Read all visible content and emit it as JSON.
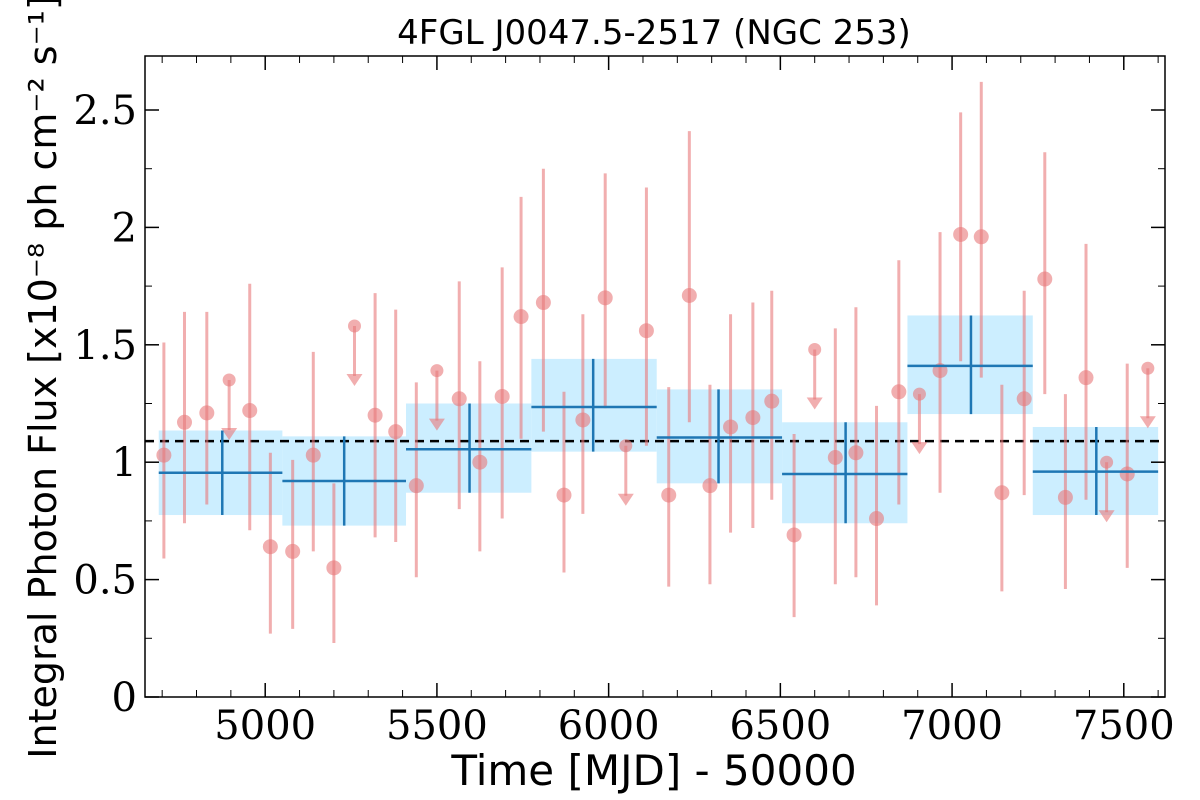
{
  "chart_data": {
    "type": "scatter",
    "title": "4FGL J0047.5-2517 (NGC 253)",
    "xlabel": "Time [MJD] - 50000",
    "ylabel": "Integral Photon Flux [x10⁻⁸ ph cm⁻² s⁻¹]",
    "xlim": [
      4650,
      7620
    ],
    "ylim": [
      0,
      2.73
    ],
    "x_ticks": [
      5000,
      5500,
      6000,
      6500,
      7000,
      7500
    ],
    "x_tick_labels": [
      "5000",
      "5500",
      "6000",
      "6500",
      "7000",
      "7500"
    ],
    "y_ticks": [
      0,
      0.5,
      1,
      1.5,
      2,
      2.5
    ],
    "y_tick_labels": [
      "0",
      "0.5",
      "1",
      "1.5",
      "2",
      "2.5"
    ],
    "mean_flux": 1.09,
    "colors": {
      "short_bins": "#e8787a",
      "long_bins": "#1f77b4",
      "long_bin_band": "#cceeff",
      "mean_line": "#000000"
    },
    "long_bins": [
      {
        "x": 4875,
        "x_lo": 4690,
        "x_hi": 5050,
        "y": 0.955,
        "y_lo": 0.775,
        "y_hi": 1.135
      },
      {
        "x": 5230,
        "x_lo": 5050,
        "x_hi": 5410,
        "y": 0.92,
        "y_lo": 0.73,
        "y_hi": 1.11
      },
      {
        "x": 5595,
        "x_lo": 5410,
        "x_hi": 5775,
        "y": 1.055,
        "y_lo": 0.87,
        "y_hi": 1.25
      },
      {
        "x": 5955,
        "x_lo": 5775,
        "x_hi": 6140,
        "y": 1.235,
        "y_lo": 1.045,
        "y_hi": 1.44
      },
      {
        "x": 6320,
        "x_lo": 6140,
        "x_hi": 6505,
        "y": 1.105,
        "y_lo": 0.91,
        "y_hi": 1.31
      },
      {
        "x": 6690,
        "x_lo": 6505,
        "x_hi": 6870,
        "y": 0.95,
        "y_lo": 0.74,
        "y_hi": 1.17
      },
      {
        "x": 7055,
        "x_lo": 6870,
        "x_hi": 7235,
        "y": 1.41,
        "y_lo": 1.205,
        "y_hi": 1.625
      },
      {
        "x": 7420,
        "x_lo": 7235,
        "x_hi": 7600,
        "y": 0.96,
        "y_lo": 0.775,
        "y_hi": 1.15
      }
    ],
    "short_bins": [
      {
        "x": 4705,
        "y": 1.03,
        "y_lo": 0.59,
        "y_hi": 1.51
      },
      {
        "x": 4765,
        "y": 1.17,
        "y_lo": 0.74,
        "y_hi": 1.64
      },
      {
        "x": 4830,
        "y": 1.21,
        "y_lo": 0.82,
        "y_hi": 1.64
      },
      {
        "x": 4955,
        "y": 1.22,
        "y_lo": 0.71,
        "y_hi": 1.76
      },
      {
        "x": 5015,
        "y": 0.64,
        "y_lo": 0.27,
        "y_hi": 1.04
      },
      {
        "x": 5080,
        "y": 0.62,
        "y_lo": 0.29,
        "y_hi": 1.01
      },
      {
        "x": 5140,
        "y": 1.03,
        "y_lo": 0.62,
        "y_hi": 1.47
      },
      {
        "x": 5200,
        "y": 0.55,
        "y_lo": 0.23,
        "y_hi": 0.91
      },
      {
        "x": 5320,
        "y": 1.2,
        "y_lo": 0.68,
        "y_hi": 1.72
      },
      {
        "x": 5380,
        "y": 1.13,
        "y_lo": 0.66,
        "y_hi": 1.65
      },
      {
        "x": 5440,
        "y": 0.9,
        "y_lo": 0.51,
        "y_hi": 1.34
      },
      {
        "x": 5565,
        "y": 1.27,
        "y_lo": 0.8,
        "y_hi": 1.77
      },
      {
        "x": 5625,
        "y": 1.0,
        "y_lo": 0.62,
        "y_hi": 1.43
      },
      {
        "x": 5690,
        "y": 1.28,
        "y_lo": 0.76,
        "y_hi": 1.83
      },
      {
        "x": 5745,
        "y": 1.62,
        "y_lo": 1.1,
        "y_hi": 2.13
      },
      {
        "x": 5810,
        "y": 1.68,
        "y_lo": 1.13,
        "y_hi": 2.25
      },
      {
        "x": 5870,
        "y": 0.86,
        "y_lo": 0.53,
        "y_hi": 1.3
      },
      {
        "x": 5925,
        "y": 1.18,
        "y_lo": 0.78,
        "y_hi": 1.63
      },
      {
        "x": 5990,
        "y": 1.7,
        "y_lo": 1.23,
        "y_hi": 2.23
      },
      {
        "x": 6110,
        "y": 1.56,
        "y_lo": 1.07,
        "y_hi": 2.17
      },
      {
        "x": 6175,
        "y": 0.86,
        "y_lo": 0.47,
        "y_hi": 1.32
      },
      {
        "x": 6235,
        "y": 1.71,
        "y_lo": 1.17,
        "y_hi": 2.41
      },
      {
        "x": 6295,
        "y": 0.9,
        "y_lo": 0.48,
        "y_hi": 1.33
      },
      {
        "x": 6355,
        "y": 1.15,
        "y_lo": 0.7,
        "y_hi": 1.63
      },
      {
        "x": 6420,
        "y": 1.19,
        "y_lo": 0.72,
        "y_hi": 1.68
      },
      {
        "x": 6475,
        "y": 1.26,
        "y_lo": 0.84,
        "y_hi": 1.73
      },
      {
        "x": 6540,
        "y": 0.69,
        "y_lo": 0.34,
        "y_hi": 1.12
      },
      {
        "x": 6660,
        "y": 1.02,
        "y_lo": 0.48,
        "y_hi": 1.57
      },
      {
        "x": 6720,
        "y": 1.04,
        "y_lo": 0.51,
        "y_hi": 1.66
      },
      {
        "x": 6780,
        "y": 0.76,
        "y_lo": 0.39,
        "y_hi": 1.24
      },
      {
        "x": 6845,
        "y": 1.3,
        "y_lo": 0.82,
        "y_hi": 1.86
      },
      {
        "x": 6965,
        "y": 1.39,
        "y_lo": 0.87,
        "y_hi": 1.98
      },
      {
        "x": 7025,
        "y": 1.97,
        "y_lo": 1.43,
        "y_hi": 2.49
      },
      {
        "x": 7085,
        "y": 1.96,
        "y_lo": 1.36,
        "y_hi": 2.62
      },
      {
        "x": 7145,
        "y": 0.87,
        "y_lo": 0.45,
        "y_hi": 1.33
      },
      {
        "x": 7210,
        "y": 1.27,
        "y_lo": 0.86,
        "y_hi": 1.73
      },
      {
        "x": 7270,
        "y": 1.78,
        "y_lo": 1.29,
        "y_hi": 2.32
      },
      {
        "x": 7330,
        "y": 0.85,
        "y_lo": 0.46,
        "y_hi": 1.29
      },
      {
        "x": 7390,
        "y": 1.36,
        "y_lo": 0.84,
        "y_hi": 1.93
      },
      {
        "x": 7510,
        "y": 0.95,
        "y_lo": 0.55,
        "y_hi": 1.42
      }
    ],
    "upper_limits": [
      {
        "x": 4895,
        "y": 1.35
      },
      {
        "x": 5260,
        "y": 1.58
      },
      {
        "x": 5500,
        "y": 1.39
      },
      {
        "x": 6050,
        "y": 1.07
      },
      {
        "x": 6600,
        "y": 1.48
      },
      {
        "x": 6905,
        "y": 1.29
      },
      {
        "x": 7450,
        "y": 1.0
      },
      {
        "x": 7570,
        "y": 1.4
      }
    ]
  }
}
